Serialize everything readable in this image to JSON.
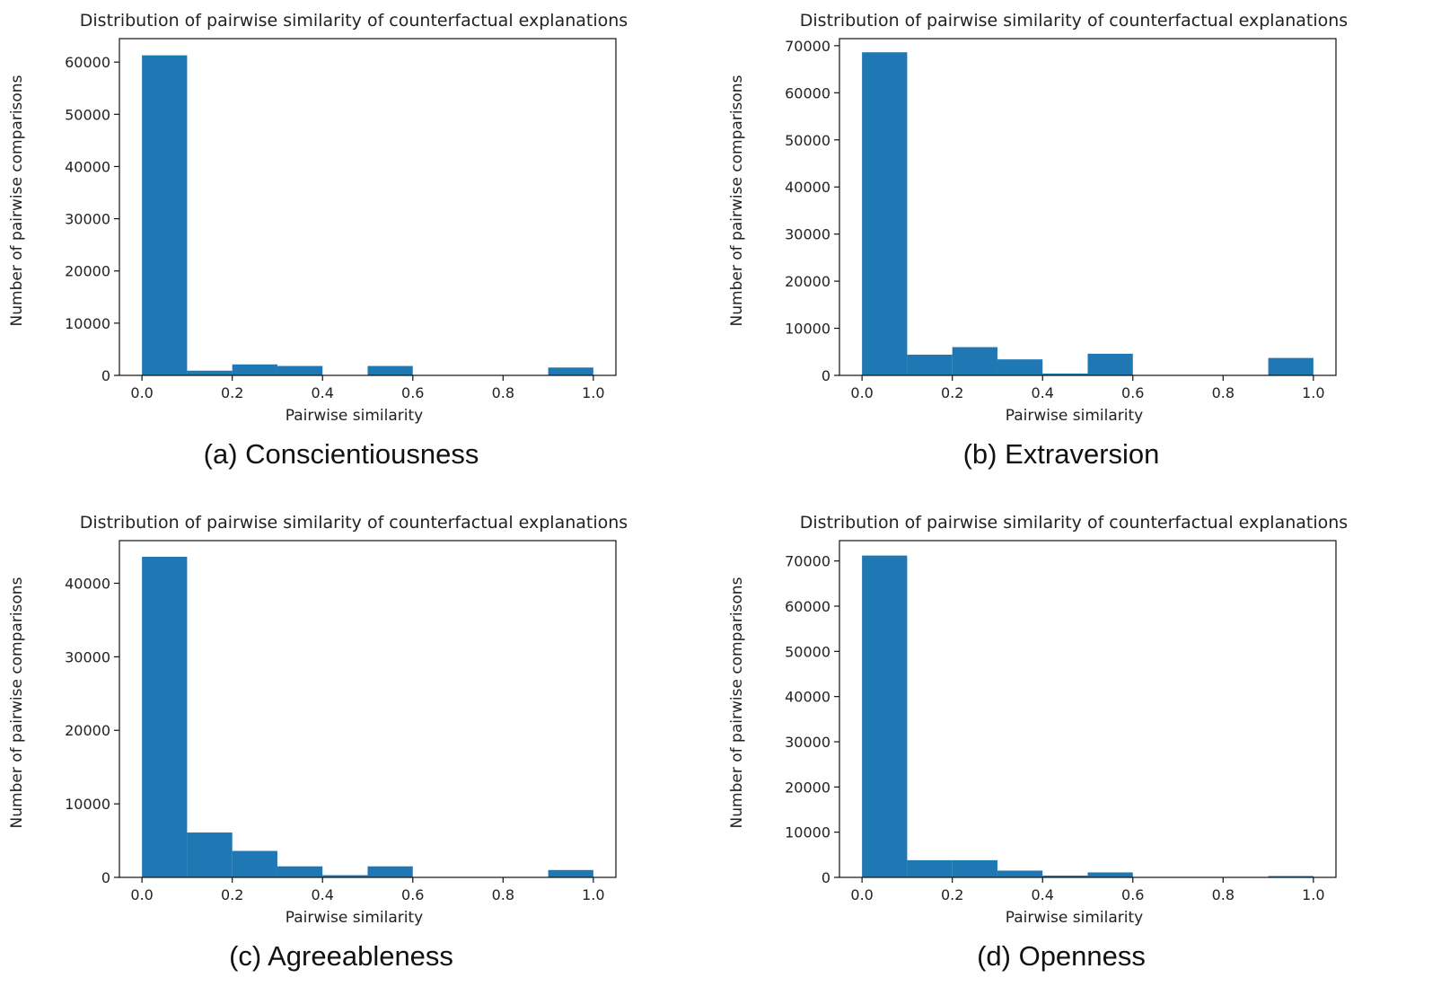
{
  "chart_data": [
    {
      "type": "bar",
      "title": "Distribution of pairwise similarity of counterfactual explanations",
      "xlabel": "Pairwise similarity",
      "ylabel": "Number of pairwise comparisons",
      "caption": "(a) Conscientiousness",
      "xlim": [
        -0.05,
        1.05
      ],
      "ylim": [
        0,
        64500
      ],
      "xticks": [
        0.0,
        0.2,
        0.4,
        0.6,
        0.8,
        1.0
      ],
      "xtick_labels": [
        "0.0",
        "0.2",
        "0.4",
        "0.6",
        "0.8",
        "1.0"
      ],
      "yticks": [
        0,
        10000,
        20000,
        30000,
        40000,
        50000,
        60000
      ],
      "ytick_labels": [
        "0",
        "10000",
        "20000",
        "30000",
        "40000",
        "50000",
        "60000"
      ],
      "bin_edges": [
        0.0,
        0.1,
        0.2,
        0.3,
        0.4,
        0.5,
        0.6,
        0.7,
        0.8,
        0.9,
        1.0
      ],
      "values": [
        61300,
        900,
        2100,
        1800,
        0,
        1800,
        0,
        0,
        0,
        1500
      ],
      "grid": false,
      "legend": "none",
      "color": "#1f77b4"
    },
    {
      "type": "bar",
      "title": "Distribution of pairwise similarity of counterfactual explanations",
      "xlabel": "Pairwise similarity",
      "ylabel": "Number of pairwise comparisons",
      "caption": "(b) Extraversion",
      "xlim": [
        -0.05,
        1.05
      ],
      "ylim": [
        0,
        71500
      ],
      "xticks": [
        0.0,
        0.2,
        0.4,
        0.6,
        0.8,
        1.0
      ],
      "xtick_labels": [
        "0.0",
        "0.2",
        "0.4",
        "0.6",
        "0.8",
        "1.0"
      ],
      "yticks": [
        0,
        10000,
        20000,
        30000,
        40000,
        50000,
        60000,
        70000
      ],
      "ytick_labels": [
        "0",
        "10000",
        "20000",
        "30000",
        "40000",
        "50000",
        "60000",
        "70000"
      ],
      "bin_edges": [
        0.0,
        0.1,
        0.2,
        0.3,
        0.4,
        0.5,
        0.6,
        0.7,
        0.8,
        0.9,
        1.0
      ],
      "values": [
        68600,
        4400,
        6000,
        3400,
        400,
        4600,
        0,
        0,
        0,
        3700
      ],
      "grid": false,
      "legend": "none",
      "color": "#1f77b4"
    },
    {
      "type": "bar",
      "title": "Distribution of pairwise similarity of counterfactual explanations",
      "xlabel": "Pairwise similarity",
      "ylabel": "Number of pairwise comparisons",
      "caption": "(c) Agreeableness",
      "xlim": [
        -0.05,
        1.05
      ],
      "ylim": [
        0,
        45800
      ],
      "xticks": [
        0.0,
        0.2,
        0.4,
        0.6,
        0.8,
        1.0
      ],
      "xtick_labels": [
        "0.0",
        "0.2",
        "0.4",
        "0.6",
        "0.8",
        "1.0"
      ],
      "yticks": [
        0,
        10000,
        20000,
        30000,
        40000
      ],
      "ytick_labels": [
        "0",
        "10000",
        "20000",
        "30000",
        "40000"
      ],
      "bin_edges": [
        0.0,
        0.1,
        0.2,
        0.3,
        0.4,
        0.5,
        0.6,
        0.7,
        0.8,
        0.9,
        1.0
      ],
      "values": [
        43600,
        6100,
        3600,
        1500,
        300,
        1500,
        0,
        0,
        0,
        1000
      ],
      "grid": false,
      "legend": "none",
      "color": "#1f77b4"
    },
    {
      "type": "bar",
      "title": "Distribution of pairwise similarity of counterfactual explanations",
      "xlabel": "Pairwise similarity",
      "ylabel": "Number of pairwise comparisons",
      "caption": "(d) Openness",
      "xlim": [
        -0.05,
        1.05
      ],
      "ylim": [
        0,
        74500
      ],
      "xticks": [
        0.0,
        0.2,
        0.4,
        0.6,
        0.8,
        1.0
      ],
      "xtick_labels": [
        "0.0",
        "0.2",
        "0.4",
        "0.6",
        "0.8",
        "1.0"
      ],
      "yticks": [
        0,
        10000,
        20000,
        30000,
        40000,
        50000,
        60000,
        70000
      ],
      "ytick_labels": [
        "0",
        "10000",
        "20000",
        "30000",
        "40000",
        "50000",
        "60000",
        "70000"
      ],
      "bin_edges": [
        0.0,
        0.1,
        0.2,
        0.3,
        0.4,
        0.5,
        0.6,
        0.7,
        0.8,
        0.9,
        1.0
      ],
      "values": [
        71200,
        3800,
        3800,
        1500,
        400,
        1100,
        0,
        0,
        0,
        300
      ],
      "grid": false,
      "legend": "none",
      "color": "#1f77b4"
    }
  ]
}
